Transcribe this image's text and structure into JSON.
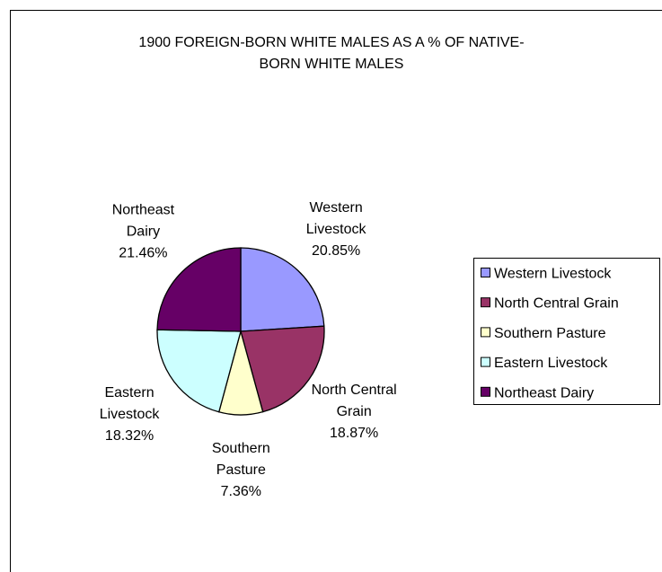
{
  "chart_data": {
    "type": "pie",
    "title": "1900 FOREIGN-BORN WHITE MALES AS A % OF NATIVE-BORN WHITE MALES",
    "categories": [
      "Western Livestock",
      "North Central Grain",
      "Southern Pasture",
      "Eastern Livestock",
      "Northeast Dairy"
    ],
    "values": [
      20.85,
      18.87,
      7.36,
      18.32,
      21.46
    ],
    "value_labels": [
      "20.85%",
      "18.87%",
      "7.36%",
      "18.32%",
      "21.46%"
    ],
    "colors": [
      "#9999ff",
      "#993366",
      "#ffffcc",
      "#ccffff",
      "#660066"
    ],
    "legend": "right"
  }
}
